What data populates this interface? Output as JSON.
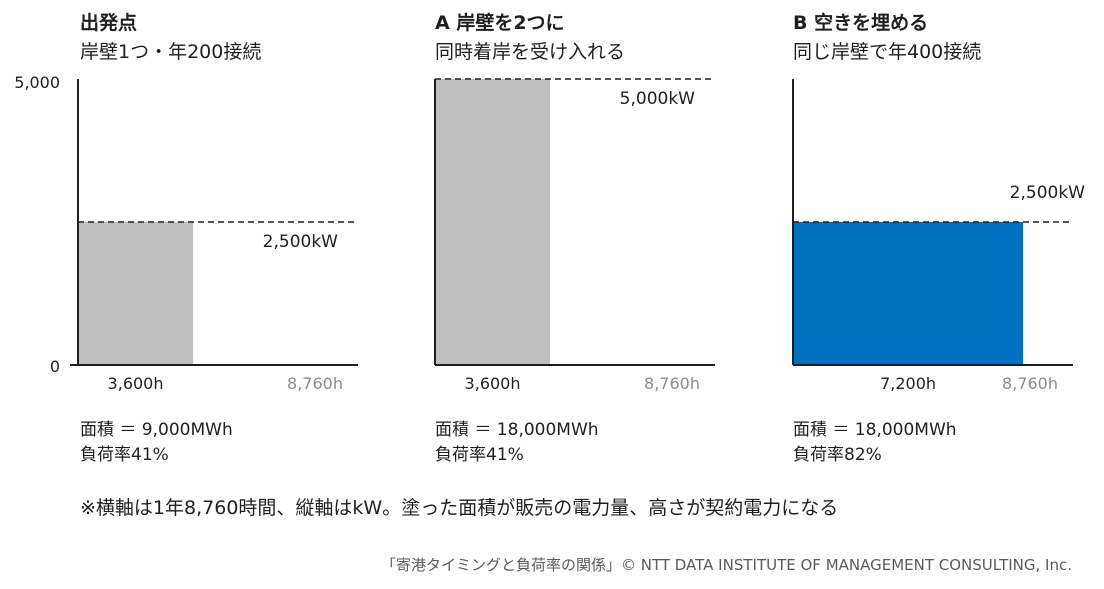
{
  "chart_data": [
    {
      "type": "bar",
      "title": "出発点",
      "subtitle": "岸壁1つ・年200接続",
      "ylim": [
        0,
        5000
      ],
      "yticks": [
        "5,000",
        "0"
      ],
      "capacity": 2500,
      "capacity_label": "2,500kW",
      "bar_value": 2500,
      "bar_hours": 3600,
      "total_hours": 8760,
      "bar_color": "#bfbfbf",
      "x_labels": [
        "3,600h",
        "8,760h"
      ],
      "stats": [
        "面積 ＝ 9,000MWh",
        "負荷率41%"
      ]
    },
    {
      "type": "bar",
      "title": "A 岸壁を2つに",
      "subtitle": "同時着岸を受け入れる",
      "ylim": [
        0,
        5000
      ],
      "capacity": 5000,
      "capacity_label": "5,000kW",
      "bar_value": 5000,
      "bar_hours": 3600,
      "total_hours": 8760,
      "bar_color": "#bfbfbf",
      "x_labels": [
        "3,600h",
        "8,760h"
      ],
      "stats": [
        "面積 ＝ 18,000MWh",
        "負荷率41%"
      ]
    },
    {
      "type": "bar",
      "title": "B 空きを埋める",
      "subtitle": "同じ岸壁で年400接続",
      "ylim": [
        0,
        5000
      ],
      "capacity": 2500,
      "capacity_label": "2,500kW",
      "bar_value": 2500,
      "bar_hours": 7200,
      "total_hours": 8760,
      "bar_color": "#0070c0",
      "x_labels": [
        "7,200h",
        "8,760h"
      ],
      "stats": [
        "面積 ＝ 18,000MWh",
        "負荷率82%"
      ]
    }
  ],
  "footnote": "※横軸は1年8,760時間、縦軸はkW。塗った面積が販売の電力量、高さが契約電力になる",
  "credit": "「寄港タイミングと負荷率の関係」© NTT DATA INSTITUTE OF MANAGEMENT CONSULTING, Inc."
}
